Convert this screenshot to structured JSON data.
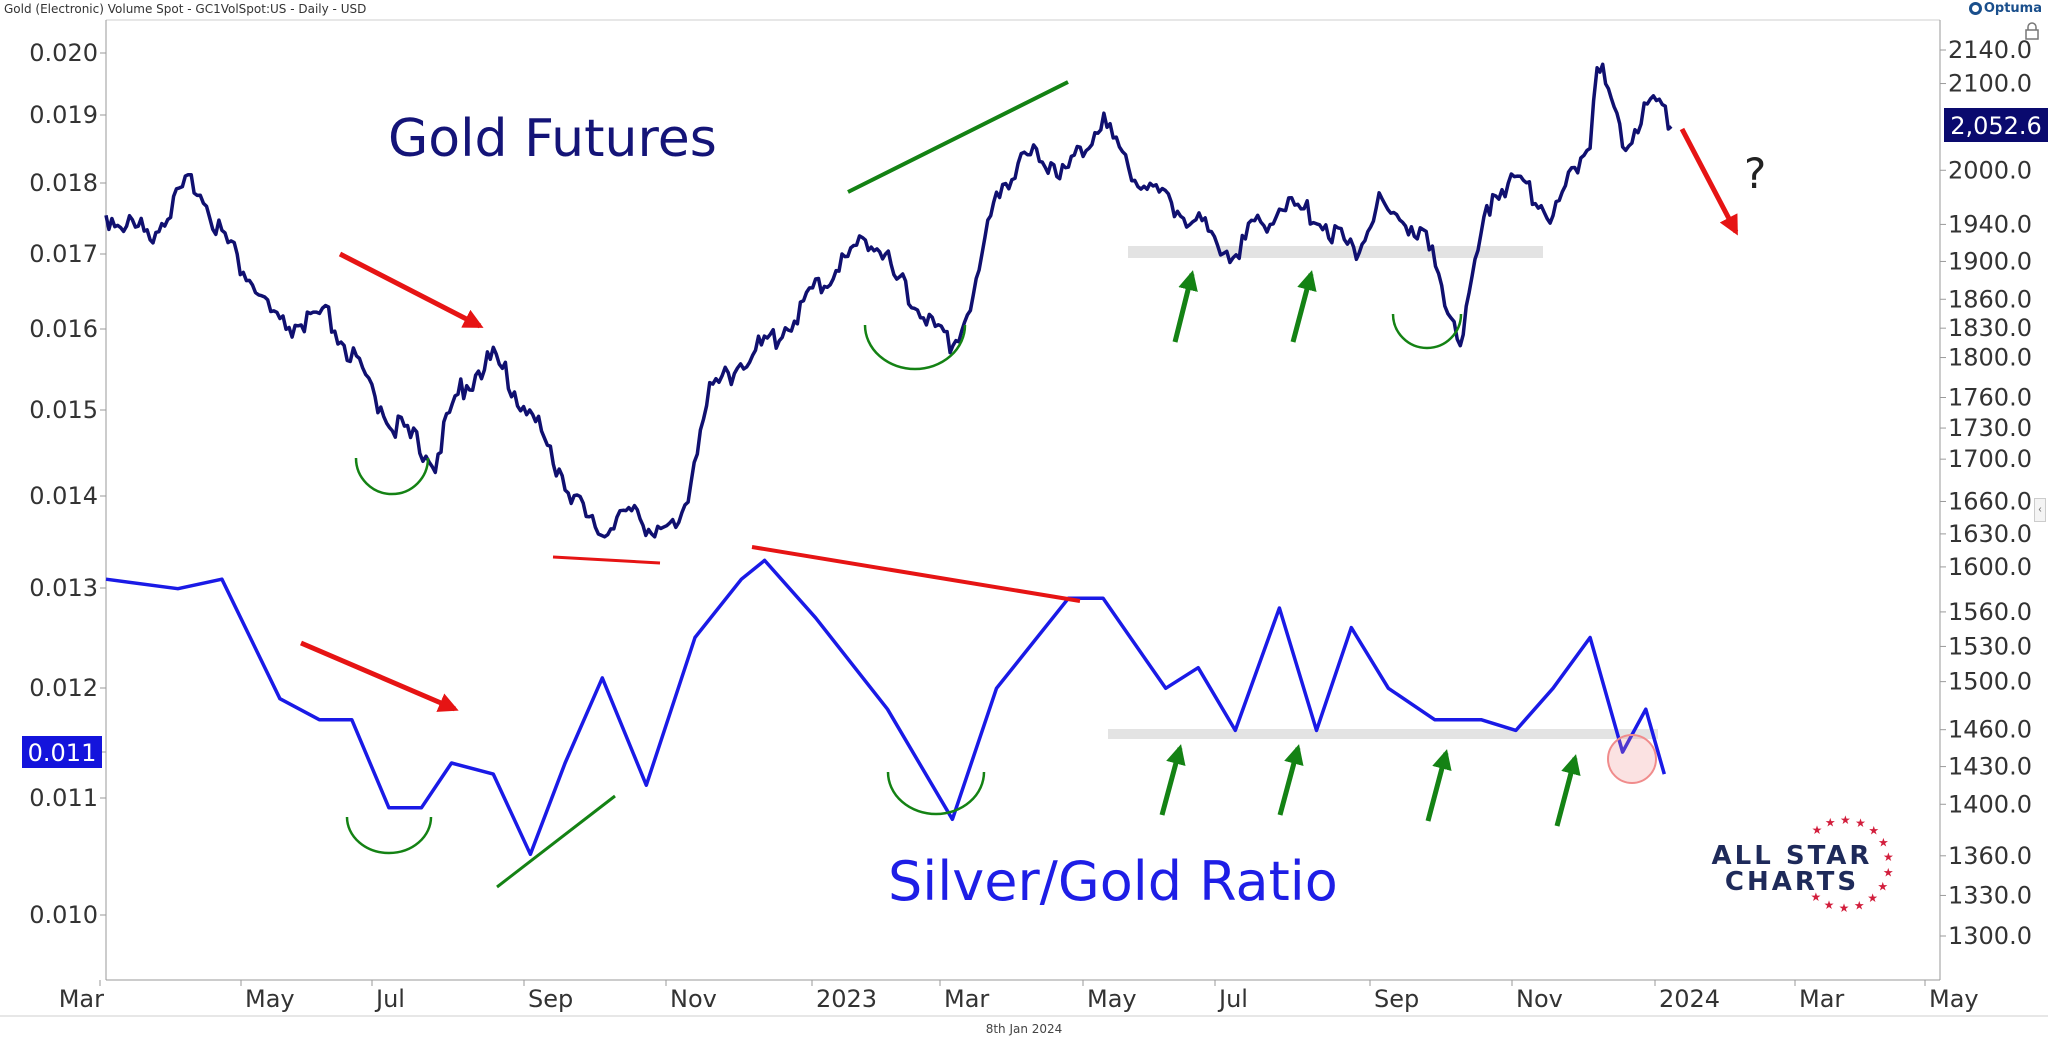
{
  "header": {
    "title": "Gold (Electronic) Volume Spot - GC1VolSpot:US - Daily - USD",
    "brand": "Optuma"
  },
  "footer": {
    "date": "8th Jan 2024"
  },
  "colors": {
    "gold_series": "#101070",
    "ratio_series": "#1a1ae6",
    "up_arrow": "#148214",
    "down_arrow": "#e61414",
    "trendline_green": "#148214",
    "trendline_red": "#e61414",
    "support_band": "#dcdcdc",
    "price_badge_bg": "#0a0a6e",
    "ratio_badge_bg": "#1414dc",
    "circle_highlight": "#f08c8c"
  },
  "annotations": {
    "gold_label": "Gold Futures",
    "ratio_label": "Silver/Gold Ratio",
    "question": "?",
    "logo_line1": "ALL STAR",
    "logo_line2": "CHARTS"
  },
  "chart_data": {
    "type": "line",
    "x_tick_labels": [
      "Mar",
      "May",
      "Jul",
      "Sep",
      "Nov",
      "2023",
      "Mar",
      "May",
      "Jul",
      "Sep",
      "Nov",
      "2024",
      "Mar",
      "May"
    ],
    "left_axis": {
      "scale": "log",
      "ticks": [
        "0.020",
        "0.019",
        "0.018",
        "0.017",
        "0.016",
        "0.015",
        "0.014",
        "0.013",
        "0.012",
        "0.011",
        "0.011",
        "0.010"
      ],
      "last_value_label": "0.011"
    },
    "right_axis": {
      "scale": "log",
      "ticks": [
        "2140.0",
        "2100.0",
        "2000.0",
        "1940.0",
        "1900.0",
        "1860.0",
        "1830.0",
        "1800.0",
        "1760.0",
        "1730.0",
        "1700.0",
        "1660.0",
        "1630.0",
        "1600.0",
        "1560.0",
        "1530.0",
        "1500.0",
        "1460.0",
        "1430.0",
        "1400.0",
        "1360.0",
        "1330.0",
        "1300.0"
      ],
      "last_value_label": "2,052.6"
    },
    "series": [
      {
        "name": "Gold Futures",
        "axis": "right",
        "x": [
          "2022-03-01",
          "2022-03-20",
          "2022-04-08",
          "2022-04-20",
          "2022-05-15",
          "2022-06-05",
          "2022-06-25",
          "2022-07-05",
          "2022-07-21",
          "2022-08-01",
          "2022-08-15",
          "2022-09-01",
          "2022-09-15",
          "2022-09-28",
          "2022-10-10",
          "2022-10-21",
          "2022-11-03",
          "2022-11-15",
          "2022-12-01",
          "2022-12-15",
          "2023-01-01",
          "2023-01-25",
          "2023-02-05",
          "2023-02-28",
          "2023-03-10",
          "2023-03-20",
          "2023-04-05",
          "2023-04-20",
          "2023-05-04",
          "2023-05-20",
          "2023-06-10",
          "2023-06-30",
          "2023-07-20",
          "2023-08-05",
          "2023-08-21",
          "2023-09-01",
          "2023-09-20",
          "2023-10-06",
          "2023-10-20",
          "2023-11-01",
          "2023-11-15",
          "2023-12-01",
          "2023-12-04",
          "2023-12-15",
          "2023-12-27",
          "2024-01-05"
        ],
        "values": [
          1950,
          1930,
          1990,
          1930,
          1830,
          1840,
          1760,
          1730,
          1700,
          1770,
          1800,
          1740,
          1680,
          1630,
          1650,
          1640,
          1630,
          1760,
          1800,
          1820,
          1870,
          1930,
          1880,
          1810,
          1860,
          1980,
          2020,
          2000,
          2060,
          1990,
          1950,
          1910,
          1960,
          1950,
          1910,
          1960,
          1930,
          1820,
          1980,
          1990,
          1950,
          2040,
          2135,
          2030,
          2080,
          2050
        ]
      },
      {
        "name": "Silver/Gold Ratio",
        "axis": "left",
        "x": [
          "2022-03-01",
          "2022-04-01",
          "2022-04-20",
          "2022-05-15",
          "2022-06-01",
          "2022-06-15",
          "2022-07-01",
          "2022-07-15",
          "2022-07-28",
          "2022-08-15",
          "2022-08-31",
          "2022-09-15",
          "2022-10-01",
          "2022-10-20",
          "2022-11-10",
          "2022-11-30",
          "2022-12-10",
          "2023-01-01",
          "2023-02-01",
          "2023-03-01",
          "2023-03-20",
          "2023-04-20",
          "2023-05-05",
          "2023-06-01",
          "2023-06-15",
          "2023-07-01",
          "2023-07-20",
          "2023-08-05",
          "2023-08-20",
          "2023-09-05",
          "2023-09-25",
          "2023-10-15",
          "2023-10-30",
          "2023-11-15",
          "2023-12-01",
          "2023-12-15",
          "2023-12-25",
          "2024-01-02"
        ],
        "values": [
          0.0131,
          0.013,
          0.0131,
          0.0119,
          0.0117,
          0.0117,
          0.0109,
          0.0109,
          0.0113,
          0.0112,
          0.0105,
          0.0113,
          0.0121,
          0.0111,
          0.0125,
          0.0131,
          0.0133,
          0.0127,
          0.0118,
          0.0108,
          0.012,
          0.0129,
          0.0129,
          0.012,
          0.0122,
          0.0116,
          0.0128,
          0.0116,
          0.0126,
          0.012,
          0.0117,
          0.0117,
          0.0116,
          0.012,
          0.0125,
          0.0114,
          0.0118,
          0.0112
        ]
      }
    ]
  }
}
